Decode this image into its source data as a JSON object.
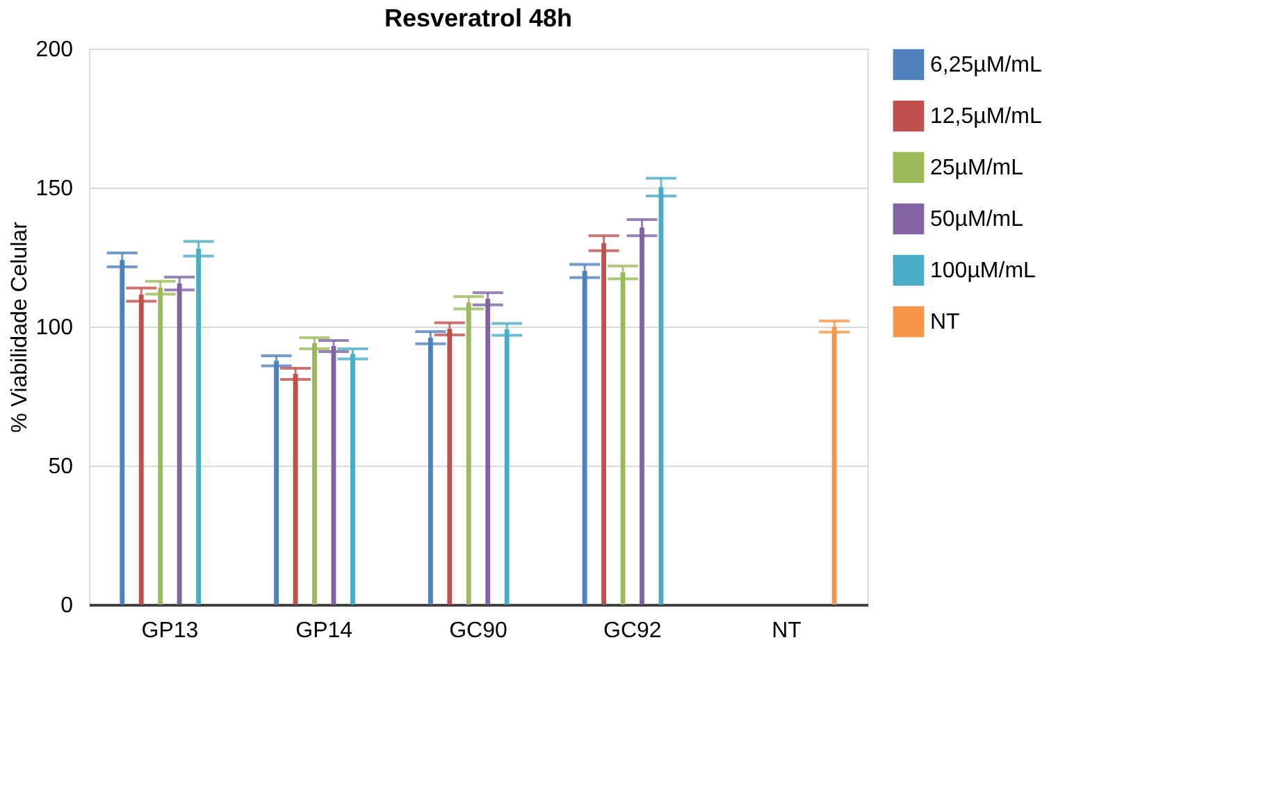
{
  "chart_data": {
    "type": "bar",
    "title": "Resveratrol 48h",
    "ylabel": "% Viabilidade Celular",
    "categories": [
      "GP13",
      "GP14",
      "GC90",
      "GC92",
      "NT"
    ],
    "ylim": [
      0,
      200
    ],
    "yticks": [
      0,
      50,
      100,
      150,
      200
    ],
    "grid": "y",
    "legend": "right",
    "series": [
      {
        "name": "6,25µM/mL",
        "color": "#4f81bd",
        "values": [
          124,
          87.7,
          96,
          120,
          null
        ],
        "errors": [
          2.5,
          1.8,
          2.2,
          2.4,
          null
        ]
      },
      {
        "name": "12,5µM/mL",
        "color": "#c0504d",
        "values": [
          111.5,
          83,
          99.2,
          130,
          null
        ],
        "errors": [
          2.4,
          2,
          2.2,
          2.7,
          null
        ]
      },
      {
        "name": "25µM/mL",
        "color": "#9bbb59",
        "values": [
          114,
          94,
          108.6,
          119.5,
          null
        ],
        "errors": [
          2.3,
          2,
          2.2,
          2.3,
          null
        ]
      },
      {
        "name": "50µM/mL",
        "color": "#8064a2",
        "values": [
          115.5,
          93,
          110,
          135.6,
          null
        ],
        "errors": [
          2.3,
          2,
          2.2,
          2.9,
          null
        ]
      },
      {
        "name": "100µM/mL",
        "color": "#4bacc6",
        "values": [
          128,
          90.2,
          99,
          150.2,
          null
        ],
        "errors": [
          2.6,
          1.8,
          2.1,
          3.2,
          null
        ]
      },
      {
        "name": "NT",
        "color": "#f79646",
        "values": [
          null,
          null,
          null,
          null,
          100
        ],
        "errors": [
          null,
          null,
          null,
          null,
          2
        ]
      }
    ]
  }
}
